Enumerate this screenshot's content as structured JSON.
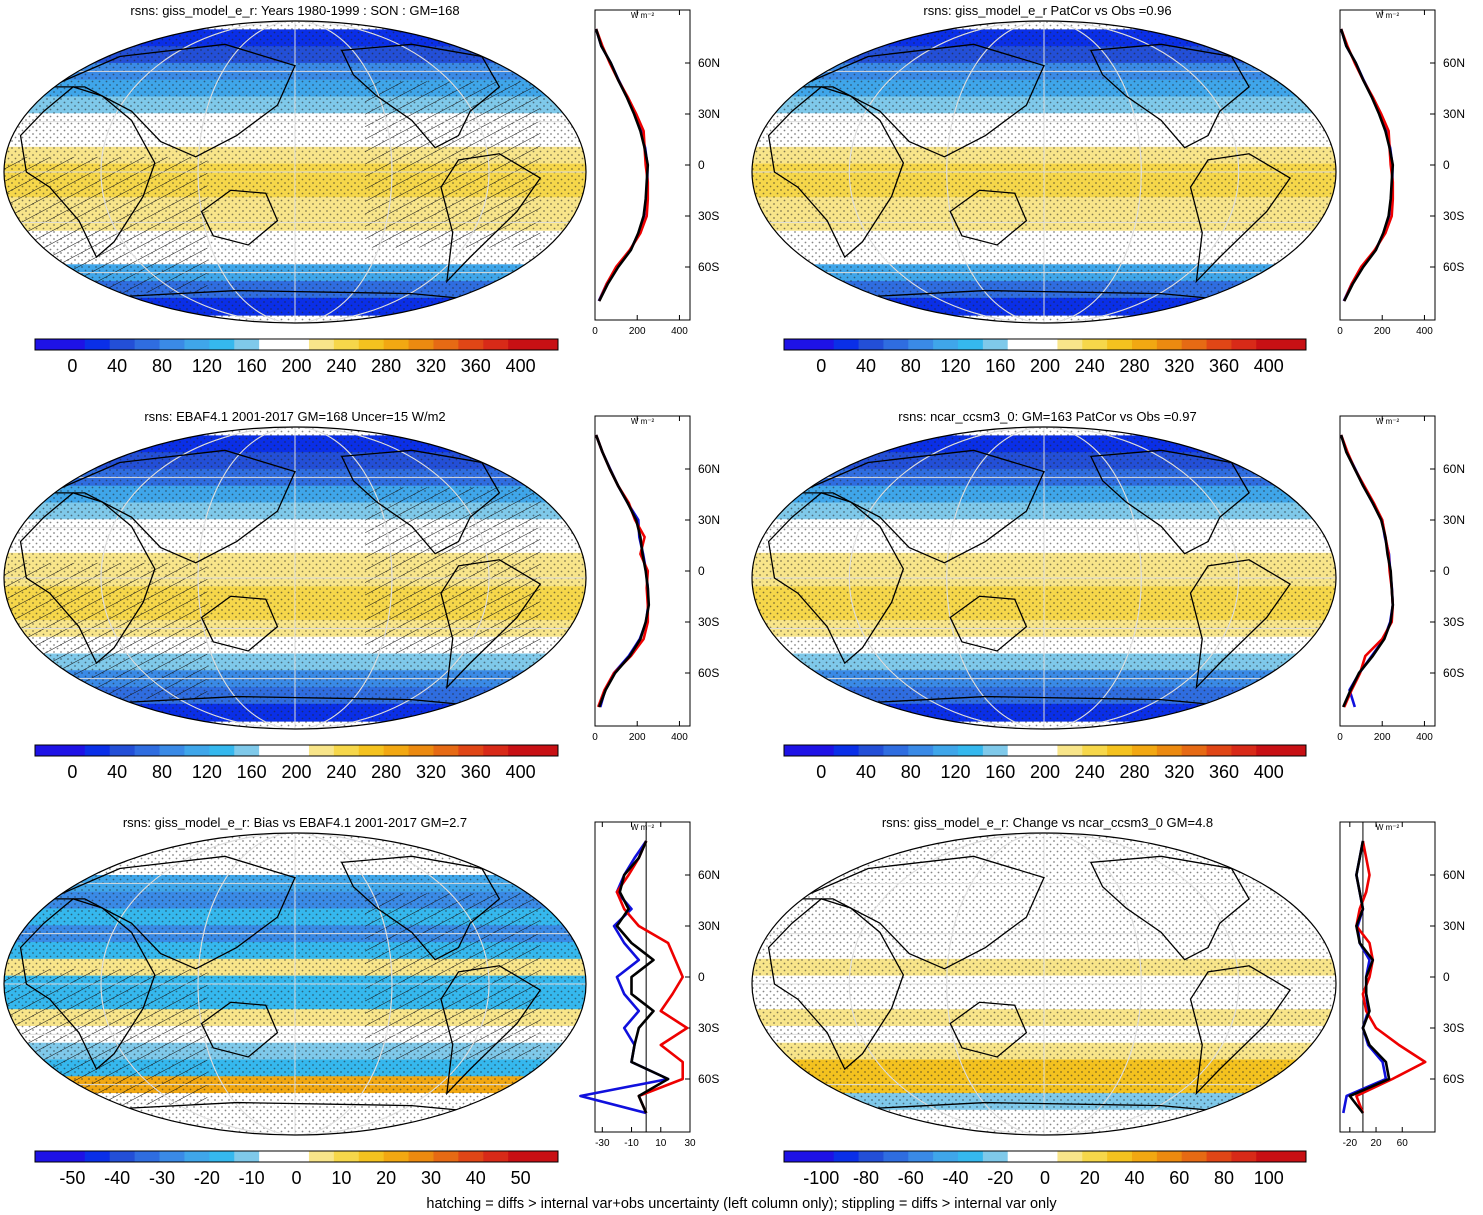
{
  "footnote": "hatching = diffs > internal var+obs uncertainty (left column only); stippling = diffs > internal var only",
  "zonal_unit": "W m⁻²",
  "colors": {
    "abs": [
      "#1e12e6",
      "#0a2fe8",
      "#234fd7",
      "#2f6de0",
      "#3a8ae6",
      "#3fa6ea",
      "#35b8ee",
      "#7fc9ea",
      "#ffffff",
      "#ffffff",
      "#f8e58a",
      "#f6d74a",
      "#f4c21f",
      "#f2a812",
      "#ec8a10",
      "#e66a14",
      "#e04616",
      "#d82a18",
      "#c81014"
    ],
    "diff": [
      "#1e12e6",
      "#0a2fe8",
      "#234fd7",
      "#2f6de0",
      "#3a8ae6",
      "#3fa6ea",
      "#35b8ee",
      "#7fc9ea",
      "#ffffff",
      "#ffffff",
      "#f8e58a",
      "#f6d74a",
      "#f4c21f",
      "#f2a812",
      "#ec8a10",
      "#e66a14",
      "#e04616",
      "#d82a18",
      "#c81014"
    ],
    "model_line": "#000000",
    "obs_line": "#ee0000",
    "other_line": "#1010dd"
  },
  "panels": [
    {
      "title": "rsns: giss_model_e_r: Years 1980-1999 : SON : GM=168",
      "field": "abs",
      "hatched": true,
      "cbar_labels": [
        "0",
        "40",
        "80",
        "120",
        "160",
        "200",
        "240",
        "280",
        "320",
        "360",
        "400"
      ],
      "zonal": {
        "xlim": [
          0,
          450
        ],
        "xticks": [
          "0",
          "200",
          "400"
        ],
        "xtick_vals": [
          0,
          200,
          400
        ],
        "lat_labels": [
          "60N",
          "30N",
          "0",
          "30S",
          "60S"
        ],
        "lat": [
          80,
          70,
          60,
          50,
          40,
          30,
          20,
          10,
          0,
          -10,
          -20,
          -30,
          -40,
          -50,
          -60,
          -70,
          -80
        ],
        "model": [
          5,
          30,
          75,
          110,
          150,
          185,
          215,
          235,
          250,
          245,
          240,
          230,
          205,
          170,
          110,
          60,
          20
        ],
        "obs": [
          5,
          35,
          70,
          110,
          155,
          195,
          230,
          235,
          240,
          250,
          250,
          245,
          215,
          165,
          100,
          55,
          20
        ],
        "other": [
          5,
          30,
          75,
          112,
          152,
          188,
          218,
          238,
          248,
          248,
          242,
          232,
          208,
          168,
          105,
          55,
          18
        ]
      }
    },
    {
      "title": "rsns: giss_model_e_r PatCor vs Obs =0.96",
      "field": "abs",
      "hatched": false,
      "cbar_labels": [
        "0",
        "40",
        "80",
        "120",
        "160",
        "200",
        "240",
        "280",
        "320",
        "360",
        "400"
      ],
      "zonal": {
        "xlim": [
          0,
          450
        ],
        "xticks": [
          "0",
          "200",
          "400"
        ],
        "xtick_vals": [
          0,
          200,
          400
        ],
        "lat_labels": [
          "60N",
          "30N",
          "0",
          "30S",
          "60S"
        ],
        "lat": [
          80,
          70,
          60,
          50,
          40,
          30,
          20,
          10,
          0,
          -10,
          -20,
          -30,
          -40,
          -50,
          -60,
          -70,
          -80
        ],
        "model": [
          5,
          30,
          75,
          110,
          150,
          185,
          215,
          235,
          250,
          245,
          240,
          230,
          205,
          170,
          110,
          60,
          20
        ],
        "obs": [
          5,
          35,
          70,
          110,
          155,
          195,
          230,
          235,
          240,
          250,
          250,
          245,
          215,
          165,
          100,
          55,
          20
        ],
        "other": [
          5,
          30,
          75,
          112,
          152,
          188,
          218,
          238,
          248,
          248,
          242,
          232,
          208,
          168,
          105,
          55,
          18
        ]
      }
    },
    {
      "title": "rsns: EBAF4.1 2001-2017 GM=168 Uncer=15 W/m2",
      "field": "abs",
      "hatched": true,
      "cbar_labels": [
        "0",
        "40",
        "80",
        "120",
        "160",
        "200",
        "240",
        "280",
        "320",
        "360",
        "400"
      ],
      "zonal": {
        "xlim": [
          0,
          450
        ],
        "xticks": [
          "0",
          "200",
          "400"
        ],
        "xtick_vals": [
          0,
          200,
          400
        ],
        "lat_labels": [
          "60N",
          "30N",
          "0",
          "30S",
          "60S"
        ],
        "lat": [
          80,
          70,
          60,
          50,
          40,
          30,
          20,
          10,
          0,
          -10,
          -20,
          -30,
          -40,
          -50,
          -60,
          -70,
          -80
        ],
        "model": [
          5,
          35,
          70,
          110,
          155,
          195,
          215,
          225,
          240,
          250,
          255,
          240,
          215,
          165,
          95,
          50,
          20
        ],
        "obs": [
          5,
          35,
          70,
          110,
          160,
          190,
          235,
          215,
          250,
          245,
          250,
          250,
          230,
          170,
          90,
          45,
          15
        ],
        "other": [
          5,
          35,
          72,
          110,
          155,
          205,
          210,
          228,
          242,
          250,
          252,
          242,
          212,
          160,
          90,
          48,
          25
        ]
      }
    },
    {
      "title": "rsns: ncar_ccsm3_0: GM=163 PatCor vs Obs =0.97",
      "field": "abs",
      "hatched": false,
      "cbar_labels": [
        "0",
        "40",
        "80",
        "120",
        "160",
        "200",
        "240",
        "280",
        "320",
        "360",
        "400"
      ],
      "zonal": {
        "xlim": [
          0,
          450
        ],
        "xticks": [
          "0",
          "200",
          "400"
        ],
        "xtick_vals": [
          0,
          200,
          400
        ],
        "lat_labels": [
          "60N",
          "30N",
          "0",
          "30S",
          "60S"
        ],
        "lat": [
          80,
          70,
          60,
          50,
          40,
          30,
          20,
          10,
          0,
          -10,
          -20,
          -30,
          -40,
          -50,
          -60,
          -70,
          -80
        ],
        "model": [
          5,
          30,
          70,
          110,
          155,
          195,
          215,
          225,
          240,
          245,
          250,
          240,
          210,
          155,
          90,
          50,
          15
        ],
        "obs": [
          5,
          35,
          70,
          115,
          160,
          200,
          215,
          230,
          235,
          245,
          250,
          245,
          200,
          120,
          95,
          55,
          20
        ],
        "other": [
          5,
          32,
          72,
          112,
          155,
          200,
          212,
          232,
          238,
          246,
          250,
          238,
          208,
          150,
          92,
          45,
          70
        ]
      }
    },
    {
      "title": "rsns: giss_model_e_r: Bias vs EBAF4.1 2001-2017  GM=2.7",
      "field": "diff",
      "hatched": true,
      "cbar_labels": [
        "-50",
        "-40",
        "-30",
        "-20",
        "-10",
        "0",
        "10",
        "20",
        "30",
        "40",
        "50"
      ],
      "zonal": {
        "xlim": [
          -35,
          30
        ],
        "xticks": [
          "-30",
          "-10",
          "10",
          "30"
        ],
        "xtick_vals": [
          -30,
          -10,
          10,
          30
        ],
        "lat_labels": [
          "60N",
          "30N",
          "0",
          "30S",
          "60S"
        ],
        "lat": [
          80,
          70,
          60,
          50,
          40,
          30,
          20,
          10,
          0,
          -10,
          -20,
          -30,
          -40,
          -50,
          -60,
          -70,
          -80
        ],
        "model": [
          0,
          -5,
          -15,
          -18,
          -12,
          -20,
          -10,
          5,
          -10,
          -10,
          5,
          -5,
          -8,
          -10,
          15,
          -5,
          0
        ],
        "obs": [
          0,
          -5,
          -12,
          -20,
          -15,
          -5,
          15,
          20,
          25,
          18,
          10,
          28,
          10,
          25,
          25,
          -5,
          0
        ],
        "other": [
          0,
          -8,
          -15,
          -20,
          -10,
          -22,
          -15,
          -5,
          -20,
          -15,
          -5,
          -15,
          -8,
          -10,
          15,
          -45,
          0
        ]
      }
    },
    {
      "title": "rsns: giss_model_e_r: Change vs ncar_ccsm3_0 GM=4.8",
      "field": "diff",
      "hatched": false,
      "cbar_labels": [
        "-100",
        "-80",
        "-60",
        "-40",
        "-20",
        "0",
        "20",
        "40",
        "60",
        "80",
        "100"
      ],
      "zonal": {
        "xlim": [
          -35,
          110
        ],
        "xticks": [
          "-20",
          "20",
          "60"
        ],
        "xtick_vals": [
          -20,
          20,
          60
        ],
        "lat_labels": [
          "60N",
          "30N",
          "0",
          "30S",
          "60S"
        ],
        "lat": [
          80,
          70,
          60,
          50,
          40,
          30,
          20,
          10,
          0,
          -10,
          -20,
          -30,
          -40,
          -50,
          -60,
          -70,
          -80
        ],
        "model": [
          0,
          -5,
          -10,
          -5,
          0,
          -10,
          -5,
          15,
          5,
          5,
          10,
          0,
          10,
          35,
          40,
          -20,
          0
        ],
        "obs": [
          0,
          5,
          10,
          5,
          -5,
          -10,
          10,
          15,
          10,
          0,
          5,
          20,
          55,
          95,
          45,
          -10,
          0
        ],
        "other": [
          0,
          -5,
          -10,
          -5,
          0,
          -8,
          -5,
          10,
          5,
          5,
          8,
          0,
          8,
          30,
          35,
          -25,
          -30
        ]
      }
    }
  ]
}
